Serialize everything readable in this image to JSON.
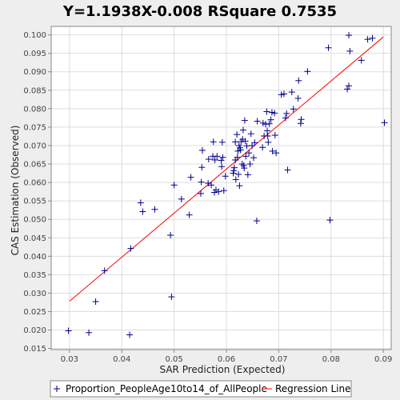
{
  "chart_data": {
    "type": "scatter",
    "title": "Y=1.1938X-0.008    RSquare 0.7535",
    "xlabel": "SAR Prediction (Expected)",
    "ylabel": "CAS Estimation (Observed)",
    "xlim": [
      0.0265,
      0.0915
    ],
    "ylim": [
      0.0147,
      0.1023
    ],
    "x_ticks": [
      0.03,
      0.04,
      0.05,
      0.06,
      0.07,
      0.08,
      0.09
    ],
    "x_tick_labels": [
      "0.03",
      "0.04",
      "0.05",
      "0.06",
      "0.07",
      "0.08",
      "0.09"
    ],
    "y_ticks": [
      0.015,
      0.02,
      0.025,
      0.03,
      0.035,
      0.04,
      0.045,
      0.05,
      0.055,
      0.06,
      0.065,
      0.07,
      0.075,
      0.08,
      0.085,
      0.09,
      0.095,
      0.1
    ],
    "y_tick_labels": [
      "0.015",
      "0.020",
      "0.025",
      "0.030",
      "0.035",
      "0.040",
      "0.045",
      "0.050",
      "0.055",
      "0.060",
      "0.065",
      "0.070",
      "0.075",
      "0.080",
      "0.085",
      "0.090",
      "0.095",
      "0.100"
    ],
    "grid": true,
    "legend_position": "bottom",
    "series": [
      {
        "name": "Proportion_PeopleAge10to14_of_AllPeople",
        "marker": "plus",
        "color": "#00008b",
        "points": [
          [
            0.0298,
            0.0198
          ],
          [
            0.0337,
            0.0193
          ],
          [
            0.035,
            0.0277
          ],
          [
            0.0367,
            0.0361
          ],
          [
            0.0415,
            0.0187
          ],
          [
            0.0417,
            0.0421
          ],
          [
            0.0436,
            0.0545
          ],
          [
            0.044,
            0.0521
          ],
          [
            0.0463,
            0.0527
          ],
          [
            0.0493,
            0.0457
          ],
          [
            0.0495,
            0.029
          ],
          [
            0.05,
            0.0593
          ],
          [
            0.0514,
            0.0555
          ],
          [
            0.0529,
            0.0512
          ],
          [
            0.0532,
            0.0614
          ],
          [
            0.0551,
            0.057
          ],
          [
            0.0552,
            0.0601
          ],
          [
            0.0553,
            0.0641
          ],
          [
            0.0554,
            0.0687
          ],
          [
            0.0565,
            0.0598
          ],
          [
            0.0566,
            0.0663
          ],
          [
            0.0571,
            0.0593
          ],
          [
            0.0574,
            0.0671
          ],
          [
            0.0575,
            0.071
          ],
          [
            0.0577,
            0.0573
          ],
          [
            0.0578,
            0.0661
          ],
          [
            0.058,
            0.058
          ],
          [
            0.0582,
            0.0671
          ],
          [
            0.0585,
            0.0575
          ],
          [
            0.059,
            0.066
          ],
          [
            0.0591,
            0.0643
          ],
          [
            0.0592,
            0.0709
          ],
          [
            0.0593,
            0.0668
          ],
          [
            0.0595,
            0.0578
          ],
          [
            0.0598,
            0.0617
          ],
          [
            0.0613,
            0.0625
          ],
          [
            0.0614,
            0.0632
          ],
          [
            0.0615,
            0.064
          ],
          [
            0.0617,
            0.0661
          ],
          [
            0.0617,
            0.071
          ],
          [
            0.0618,
            0.0608
          ],
          [
            0.062,
            0.073
          ],
          [
            0.0621,
            0.0668
          ],
          [
            0.0622,
            0.0685
          ],
          [
            0.0623,
            0.0622
          ],
          [
            0.0624,
            0.07
          ],
          [
            0.0625,
            0.0591
          ],
          [
            0.0626,
            0.0694
          ],
          [
            0.0627,
            0.0688
          ],
          [
            0.0628,
            0.0711
          ],
          [
            0.063,
            0.065
          ],
          [
            0.0631,
            0.0717
          ],
          [
            0.0632,
            0.0742
          ],
          [
            0.0633,
            0.0646
          ],
          [
            0.0634,
            0.0639
          ],
          [
            0.0635,
            0.0768
          ],
          [
            0.0636,
            0.0712
          ],
          [
            0.0637,
            0.0671
          ],
          [
            0.0639,
            0.0699
          ],
          [
            0.0641,
            0.0621
          ],
          [
            0.0643,
            0.068
          ],
          [
            0.0645,
            0.065
          ],
          [
            0.0647,
            0.0732
          ],
          [
            0.0649,
            0.07
          ],
          [
            0.0652,
            0.0667
          ],
          [
            0.0654,
            0.0708
          ],
          [
            0.0658,
            0.0496
          ],
          [
            0.0659,
            0.0766
          ],
          [
            0.0669,
            0.0695
          ],
          [
            0.067,
            0.0761
          ],
          [
            0.0672,
            0.0726
          ],
          [
            0.0675,
            0.0758
          ],
          [
            0.0677,
            0.0792
          ],
          [
            0.0678,
            0.074
          ],
          [
            0.0679,
            0.0726
          ],
          [
            0.068,
            0.0709
          ],
          [
            0.0682,
            0.0759
          ],
          [
            0.0685,
            0.077
          ],
          [
            0.0687,
            0.079
          ],
          [
            0.0688,
            0.0685
          ],
          [
            0.0692,
            0.0788
          ],
          [
            0.0693,
            0.0728
          ],
          [
            0.0695,
            0.068
          ],
          [
            0.0705,
            0.0838
          ],
          [
            0.071,
            0.084
          ],
          [
            0.0713,
            0.0775
          ],
          [
            0.0715,
            0.0787
          ],
          [
            0.0717,
            0.0634
          ],
          [
            0.0725,
            0.0845
          ],
          [
            0.0728,
            0.0799
          ],
          [
            0.0737,
            0.0828
          ],
          [
            0.0738,
            0.0876
          ],
          [
            0.0742,
            0.076
          ],
          [
            0.0743,
            0.0771
          ],
          [
            0.0755,
            0.0901
          ],
          [
            0.0795,
            0.0965
          ],
          [
            0.0798,
            0.0498
          ],
          [
            0.0831,
            0.0853
          ],
          [
            0.0834,
            0.0862
          ],
          [
            0.0834,
            0.0999
          ],
          [
            0.0836,
            0.0956
          ],
          [
            0.0858,
            0.0931
          ],
          [
            0.087,
            0.0988
          ],
          [
            0.0879,
            0.0991
          ],
          [
            0.0902,
            0.0762
          ]
        ]
      },
      {
        "name": "Regression Line",
        "line": "solid",
        "color": "#ff0000",
        "slope": 1.1938,
        "intercept": -0.008,
        "x_range": [
          0.03,
          0.09
        ]
      }
    ]
  }
}
